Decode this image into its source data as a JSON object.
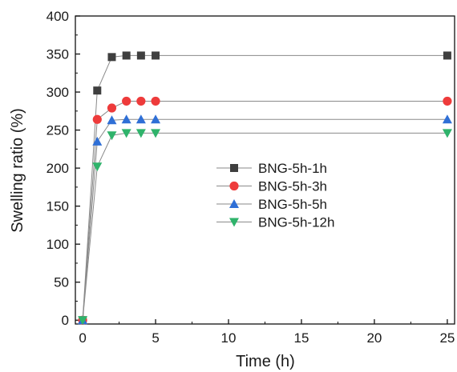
{
  "chart_data": {
    "type": "line",
    "title": "",
    "xlabel": "Time (h)",
    "ylabel": "Swelling ratio (%)",
    "xlim": [
      -0.5,
      25.5
    ],
    "ylim": [
      -5,
      400
    ],
    "xticks": [
      0,
      5,
      10,
      15,
      20,
      25
    ],
    "yticks": [
      0,
      50,
      100,
      150,
      200,
      250,
      300,
      350,
      400
    ],
    "grid": false,
    "legend_position": "center-right",
    "x": [
      0,
      1,
      2,
      3,
      4,
      5,
      25
    ],
    "series": [
      {
        "name": "BNG-5h-1h",
        "values": [
          0,
          302,
          346,
          348,
          348,
          348,
          348
        ],
        "marker": "square",
        "color": "#3f3f3f"
      },
      {
        "name": "BNG-5h-3h",
        "values": [
          0,
          264,
          279,
          288,
          288,
          288,
          288
        ],
        "marker": "circle",
        "color": "#ee3b3b"
      },
      {
        "name": "BNG-5h-5h",
        "values": [
          0,
          235,
          263,
          264,
          264,
          264,
          264
        ],
        "marker": "triangle-up",
        "color": "#2f6fd6"
      },
      {
        "name": "BNG-5h-12h",
        "values": [
          0,
          202,
          243,
          246,
          246,
          246,
          246
        ],
        "marker": "triangle-down",
        "color": "#2fb36b"
      }
    ]
  }
}
